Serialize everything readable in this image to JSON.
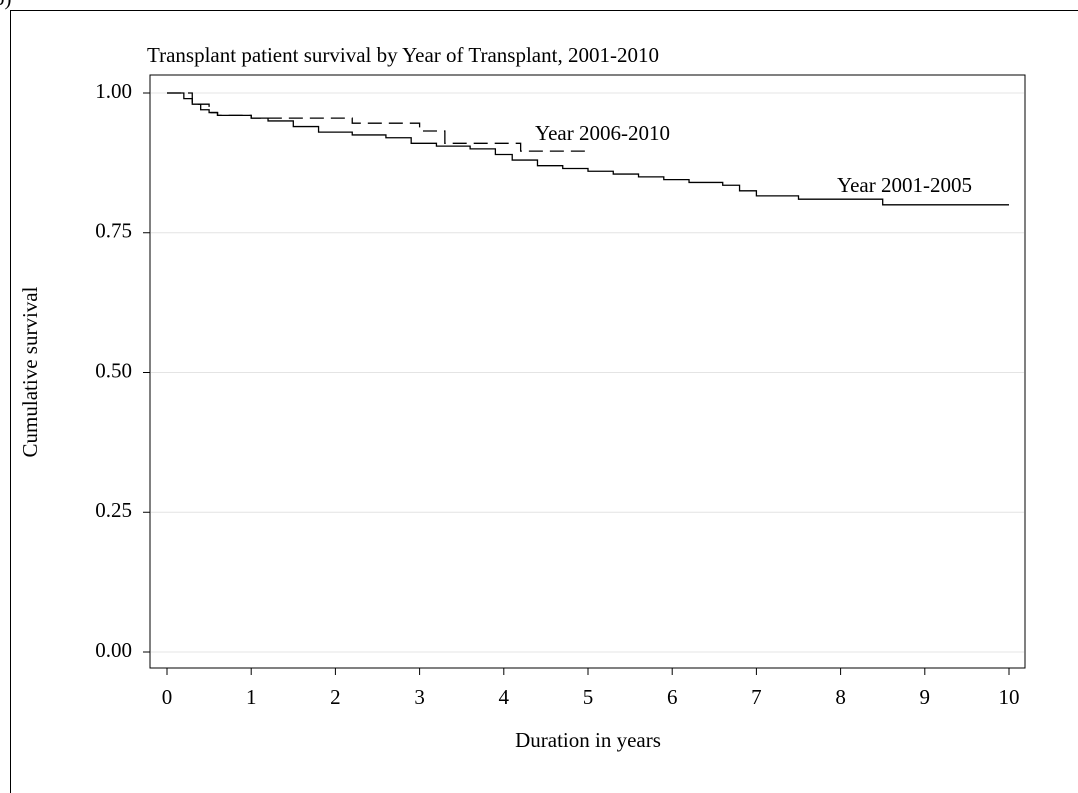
{
  "panel_label": "b)",
  "chart_data": {
    "type": "step",
    "title": "Transplant patient survival by Year of Transplant, 2001-2010",
    "x_label": "Duration in years",
    "y_label": "Cumulative survival",
    "xlim": [
      -0.2,
      10.2
    ],
    "ylim": [
      -0.03,
      1.03
    ],
    "xticks": [
      0,
      1,
      2,
      3,
      4,
      5,
      6,
      7,
      8,
      9,
      10
    ],
    "yticks": [
      {
        "value": 0,
        "label": "0.00"
      },
      {
        "value": 0.25,
        "label": "0.25"
      },
      {
        "value": 0.5,
        "label": "0.50"
      },
      {
        "value": 0.75,
        "label": "0.75"
      },
      {
        "value": 1,
        "label": "1.00"
      }
    ],
    "grid": true,
    "series": [
      {
        "name": "Year 2001-2005",
        "color": "#000000",
        "dash": "solid",
        "x": [
          0,
          0.2,
          0.3,
          0.4,
          0.5,
          0.6,
          1.0,
          1.2,
          1.5,
          1.8,
          2.2,
          2.6,
          2.9,
          3.2,
          3.6,
          3.9,
          4.1,
          4.4,
          4.7,
          5.0,
          5.3,
          5.6,
          5.9,
          6.2,
          6.6,
          6.8,
          7.0,
          7.5,
          8.5,
          10
        ],
        "values": [
          1.0,
          0.99,
          0.98,
          0.97,
          0.965,
          0.96,
          0.955,
          0.95,
          0.94,
          0.93,
          0.925,
          0.92,
          0.91,
          0.905,
          0.9,
          0.89,
          0.88,
          0.87,
          0.865,
          0.86,
          0.855,
          0.85,
          0.845,
          0.84,
          0.835,
          0.825,
          0.816,
          0.81,
          0.8,
          0.8
        ]
      },
      {
        "name": "Year 2006-2010",
        "color": "#000000",
        "dash": "dashed",
        "x": [
          0,
          0.3,
          0.5,
          0.6,
          1.0,
          2.2,
          3.0,
          3.3,
          4.2,
          5.0
        ],
        "values": [
          1.0,
          0.98,
          0.965,
          0.96,
          0.955,
          0.946,
          0.932,
          0.91,
          0.896,
          0.896
        ]
      }
    ],
    "annotations": [
      "Year 2006-2010",
      "Year 2001-2005"
    ]
  }
}
